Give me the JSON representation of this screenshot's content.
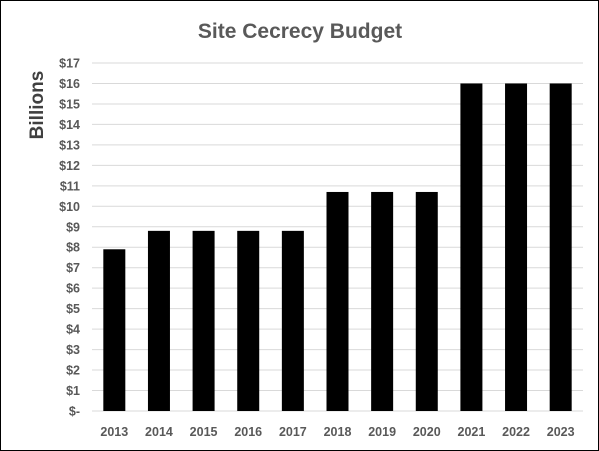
{
  "chart_data": {
    "type": "bar",
    "title": "Site Cecrecy Budget",
    "xlabel": "",
    "ylabel": "Billions",
    "categories": [
      "2013",
      "2014",
      "2015",
      "2016",
      "2017",
      "2018",
      "2019",
      "2020",
      "2021",
      "2022",
      "2023"
    ],
    "values": [
      7.9,
      8.8,
      8.8,
      8.8,
      8.8,
      10.7,
      10.7,
      10.7,
      16,
      16,
      16
    ],
    "ylim": [
      0,
      17
    ],
    "y_ticks": [
      "$-",
      "$1",
      "$2",
      "$3",
      "$4",
      "$5",
      "$6",
      "$7",
      "$8",
      "$9",
      "$10",
      "$11",
      "$12",
      "$13",
      "$14",
      "$15",
      "$16",
      "$17"
    ],
    "grid": true,
    "legend": "none",
    "bar_color": "#000000"
  }
}
